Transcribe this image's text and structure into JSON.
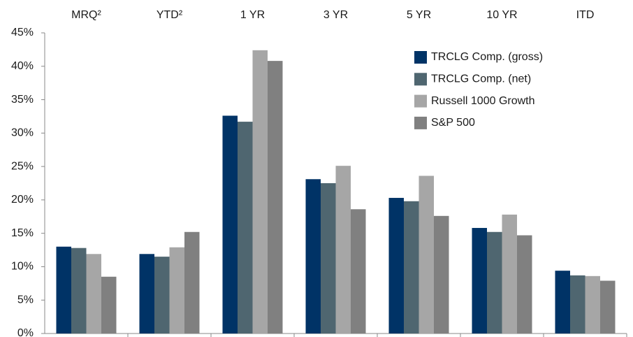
{
  "chart_data": {
    "type": "bar",
    "categories": [
      "MRQ²",
      "YTD²",
      "1 YR",
      "3 YR",
      "5 YR",
      "10 YR",
      "ITD"
    ],
    "series": [
      {
        "name": "TRCLG Comp. (gross)",
        "color": "#003366",
        "values": [
          13.0,
          11.9,
          32.6,
          23.1,
          20.3,
          15.8,
          9.4
        ]
      },
      {
        "name": "TRCLG Comp. (net)",
        "color": "#4f6670",
        "values": [
          12.8,
          11.5,
          31.7,
          22.5,
          19.8,
          15.2,
          8.7
        ]
      },
      {
        "name": "Russell 1000 Growth",
        "color": "#a6a6a6",
        "values": [
          11.9,
          12.9,
          42.4,
          25.1,
          23.6,
          17.8,
          8.6
        ]
      },
      {
        "name": "S&P 500",
        "color": "#808080",
        "values": [
          8.5,
          15.2,
          40.8,
          18.6,
          17.6,
          14.7,
          7.9
        ]
      }
    ],
    "ylim": [
      0,
      45
    ],
    "yticks": [
      {
        "value": 0,
        "label": "0%"
      },
      {
        "value": 5,
        "label": "5%"
      },
      {
        "value": 10,
        "label": "10%"
      },
      {
        "value": 15,
        "label": "15%"
      },
      {
        "value": 20,
        "label": "20%"
      },
      {
        "value": 25,
        "label": "25%"
      },
      {
        "value": 30,
        "label": "30%"
      },
      {
        "value": 35,
        "label": "35%"
      },
      {
        "value": 40,
        "label": "40%"
      },
      {
        "value": 45,
        "label": "45%"
      }
    ],
    "grid": false,
    "legend": "upper-right"
  }
}
